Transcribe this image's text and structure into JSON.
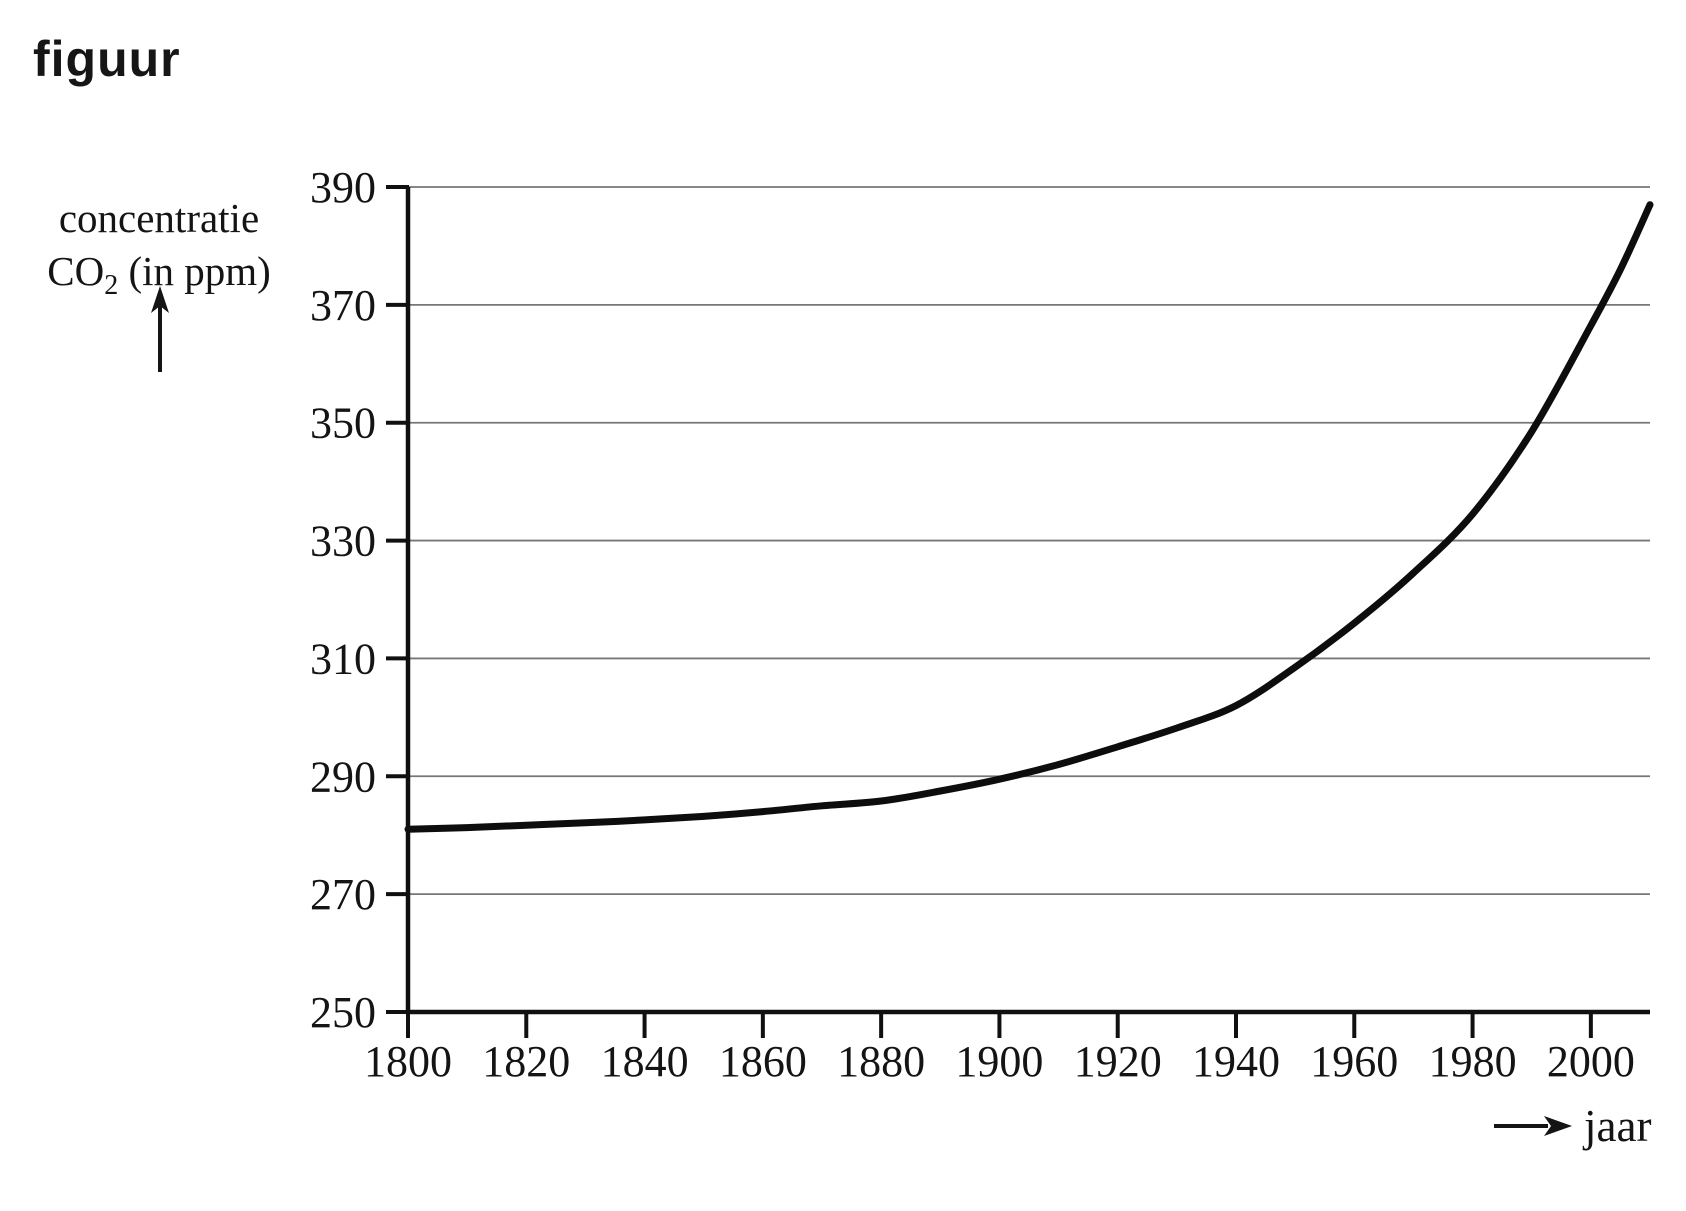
{
  "figure": {
    "title": "figuur",
    "y_axis": {
      "label_line1": "concentratie",
      "label_co2_prefix": "CO",
      "label_co2_sub": "2",
      "label_co2_suffix": " (in ppm)"
    },
    "x_axis": {
      "label": "jaar"
    }
  },
  "colors": {
    "axis": "#101010",
    "grid": "#777777",
    "curve": "#0d0d0d",
    "text": "#141414"
  },
  "chart_data": {
    "type": "line",
    "title": "figuur",
    "xlabel": "jaar",
    "ylabel": "concentratie CO2 (in ppm)",
    "xlim": [
      1800,
      2010
    ],
    "ylim": [
      250,
      390
    ],
    "x_ticks": [
      1800,
      1820,
      1840,
      1860,
      1880,
      1900,
      1920,
      1940,
      1960,
      1980,
      2000
    ],
    "y_ticks": [
      250,
      270,
      290,
      310,
      330,
      350,
      370,
      390
    ],
    "grid": "horizontal",
    "legend": "none",
    "series": [
      {
        "name": "CO2-concentratie",
        "x": [
          1800,
          1810,
          1820,
          1830,
          1840,
          1850,
          1860,
          1870,
          1880,
          1890,
          1900,
          1910,
          1920,
          1930,
          1940,
          1950,
          1960,
          1970,
          1980,
          1990,
          2000,
          2005,
          2010
        ],
        "y": [
          281,
          281.3,
          281.7,
          282.1,
          282.6,
          283.2,
          284,
          285,
          285.8,
          287.5,
          289.5,
          292,
          295,
          298.2,
          302,
          308.5,
          316,
          324.5,
          334.5,
          348.5,
          366.5,
          376,
          387
        ]
      }
    ]
  }
}
